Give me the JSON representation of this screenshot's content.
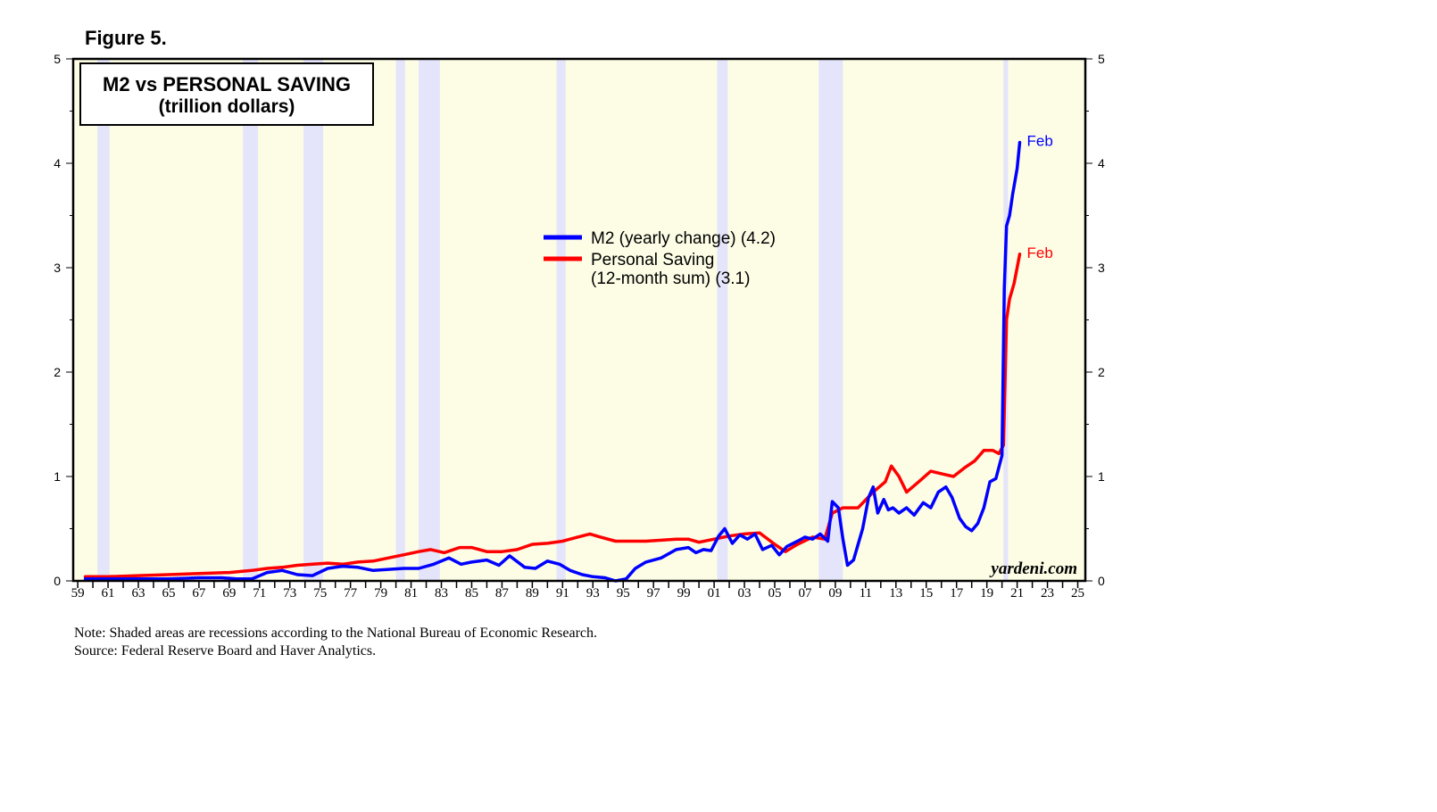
{
  "figure_label": "Figure 5.",
  "colors": {
    "background": "#fdfde6",
    "recession": "#e4e4fa",
    "m2": "#0000ff",
    "saving": "#ff0000",
    "axis": "#000000"
  },
  "chart_data": {
    "type": "line",
    "title": "M2 vs PERSONAL SAVING",
    "subtitle": "(trillion dollars)",
    "xlim": [
      1958.7,
      2025.5
    ],
    "ylim": [
      0,
      5
    ],
    "y_ticks": [
      0,
      1,
      2,
      3,
      4,
      5
    ],
    "y_tick_labels": [
      "0",
      "1",
      "2",
      "3",
      "4",
      "5"
    ],
    "x_tick_labels": [
      "59",
      "61",
      "63",
      "65",
      "67",
      "69",
      "71",
      "73",
      "75",
      "77",
      "79",
      "81",
      "83",
      "85",
      "87",
      "89",
      "91",
      "93",
      "95",
      "97",
      "99",
      "01",
      "03",
      "05",
      "07",
      "09",
      "11",
      "13",
      "15",
      "17",
      "19",
      "21",
      "23",
      "25"
    ],
    "x_tick_years": [
      1959,
      1961,
      1963,
      1965,
      1967,
      1969,
      1971,
      1973,
      1975,
      1977,
      1979,
      1981,
      1983,
      1985,
      1987,
      1989,
      1991,
      1993,
      1995,
      1997,
      1999,
      2001,
      2003,
      2005,
      2007,
      2009,
      2011,
      2013,
      2015,
      2017,
      2019,
      2021,
      2023,
      2025
    ],
    "recessions": [
      [
        1960.3,
        1961.1
      ],
      [
        1969.9,
        1970.9
      ],
      [
        1973.9,
        1975.2
      ],
      [
        1980.0,
        1980.6
      ],
      [
        1981.5,
        1982.9
      ],
      [
        1990.6,
        1991.2
      ],
      [
        2001.2,
        2001.9
      ],
      [
        2007.9,
        2009.5
      ],
      [
        2020.1,
        2020.4
      ]
    ],
    "legend": {
      "m2": "M2 (yearly change) (4.2)",
      "saving_line1": "Personal Saving",
      "saving_line2": "(12-month sum) (3.1)"
    },
    "end_labels": {
      "m2": "Feb",
      "saving": "Feb"
    },
    "watermark": "yardeni.com",
    "series": [
      {
        "name": "M2 (yearly change)",
        "color": "#0000ff",
        "x": [
          1959.5,
          1961,
          1963,
          1965,
          1967,
          1968.5,
          1969.5,
          1970.5,
          1971.5,
          1972.5,
          1973.5,
          1974.5,
          1975.5,
          1976.5,
          1977.5,
          1978.5,
          1979.5,
          1980.5,
          1981.5,
          1982.5,
          1983.5,
          1984.3,
          1985,
          1986,
          1986.8,
          1987.5,
          1988.5,
          1989.2,
          1990,
          1990.8,
          1991.5,
          1992.3,
          1993,
          1993.8,
          1994.5,
          1995.2,
          1995.8,
          1996.5,
          1997.5,
          1998.5,
          1999.3,
          1999.8,
          2000.3,
          2000.8,
          2001.3,
          2001.7,
          2002.2,
          2002.7,
          2003.2,
          2003.7,
          2004.2,
          2004.8,
          2005.3,
          2005.8,
          2006.5,
          2007,
          2007.5,
          2008,
          2008.5,
          2008.8,
          2009.2,
          2009.5,
          2009.8,
          2010.2,
          2010.5,
          2010.8,
          2011.2,
          2011.5,
          2011.8,
          2012.2,
          2012.5,
          2012.8,
          2013.2,
          2013.7,
          2014.2,
          2014.8,
          2015.3,
          2015.8,
          2016.3,
          2016.7,
          2017.2,
          2017.6,
          2018,
          2018.4,
          2018.8,
          2019.2,
          2019.6,
          2020.0,
          2020.15,
          2020.3,
          2020.5,
          2020.7,
          2021.0,
          2021.17
        ],
        "values": [
          0.02,
          0.02,
          0.02,
          0.02,
          0.03,
          0.03,
          0.02,
          0.02,
          0.08,
          0.1,
          0.06,
          0.05,
          0.12,
          0.14,
          0.13,
          0.1,
          0.11,
          0.12,
          0.12,
          0.16,
          0.22,
          0.16,
          0.18,
          0.2,
          0.15,
          0.24,
          0.13,
          0.12,
          0.19,
          0.16,
          0.1,
          0.06,
          0.04,
          0.03,
          0.0,
          0.02,
          0.12,
          0.18,
          0.22,
          0.3,
          0.32,
          0.27,
          0.3,
          0.29,
          0.43,
          0.5,
          0.36,
          0.44,
          0.4,
          0.45,
          0.3,
          0.34,
          0.25,
          0.33,
          0.38,
          0.42,
          0.4,
          0.45,
          0.38,
          0.76,
          0.7,
          0.4,
          0.15,
          0.2,
          0.35,
          0.5,
          0.8,
          0.9,
          0.65,
          0.78,
          0.68,
          0.7,
          0.65,
          0.7,
          0.63,
          0.75,
          0.7,
          0.85,
          0.9,
          0.8,
          0.6,
          0.52,
          0.48,
          0.55,
          0.7,
          0.95,
          0.98,
          1.2,
          2.8,
          3.4,
          3.5,
          3.7,
          3.95,
          4.2
        ]
      },
      {
        "name": "Personal Saving (12-month sum)",
        "color": "#ff0000",
        "x": [
          1959.5,
          1961,
          1963,
          1965,
          1967,
          1969,
          1970.5,
          1971.5,
          1972.5,
          1973.5,
          1974.5,
          1975.5,
          1976.5,
          1977.5,
          1978.5,
          1979.5,
          1980.5,
          1981.5,
          1982.3,
          1983.2,
          1984.2,
          1985,
          1986,
          1987,
          1988,
          1989,
          1990,
          1991,
          1992,
          1992.8,
          1993.5,
          1994.5,
          1995.5,
          1996.5,
          1997.5,
          1998.5,
          1999.3,
          2000,
          2001,
          2002,
          2003,
          2004,
          2005,
          2005.7,
          2006.5,
          2007.5,
          2008.3,
          2008.8,
          2009.5,
          2010.5,
          2011.5,
          2012.3,
          2012.7,
          2013.2,
          2013.7,
          2014.5,
          2015.3,
          2016.2,
          2016.8,
          2017.5,
          2018.2,
          2018.8,
          2019.4,
          2019.8,
          2020.1,
          2020.3,
          2020.5,
          2020.8,
          2021.0,
          2021.17
        ],
        "values": [
          0.04,
          0.04,
          0.05,
          0.06,
          0.07,
          0.08,
          0.1,
          0.12,
          0.13,
          0.15,
          0.16,
          0.17,
          0.16,
          0.18,
          0.19,
          0.22,
          0.25,
          0.28,
          0.3,
          0.27,
          0.32,
          0.32,
          0.28,
          0.28,
          0.3,
          0.35,
          0.36,
          0.38,
          0.42,
          0.45,
          0.42,
          0.38,
          0.38,
          0.38,
          0.39,
          0.4,
          0.4,
          0.37,
          0.4,
          0.43,
          0.45,
          0.46,
          0.35,
          0.28,
          0.35,
          0.42,
          0.4,
          0.65,
          0.7,
          0.7,
          0.85,
          0.95,
          1.1,
          1.0,
          0.85,
          0.95,
          1.05,
          1.02,
          1.0,
          1.08,
          1.15,
          1.25,
          1.25,
          1.22,
          1.3,
          2.5,
          2.7,
          2.85,
          3.0,
          3.13
        ]
      }
    ]
  },
  "note": {
    "line1": "Note: Shaded areas are recessions according to the National Bureau of Economic Research.",
    "line2": "Source: Federal Reserve Board and Haver Analytics."
  }
}
